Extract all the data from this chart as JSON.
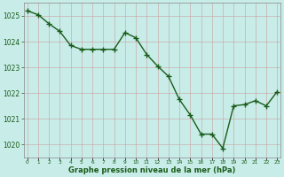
{
  "x": [
    0,
    1,
    2,
    3,
    4,
    5,
    6,
    7,
    8,
    9,
    10,
    11,
    12,
    13,
    14,
    15,
    16,
    17,
    18,
    19,
    20,
    21,
    22,
    23
  ],
  "y": [
    1025.2,
    1025.05,
    1024.7,
    1024.4,
    1023.85,
    1023.7,
    1023.7,
    1023.7,
    1023.7,
    1024.35,
    1024.15,
    1023.5,
    1023.05,
    1022.65,
    1021.75,
    1021.15,
    1020.4,
    1020.4,
    1019.85,
    1021.5,
    1021.55,
    1021.7,
    1021.5,
    1022.05
  ],
  "line_color": "#1a5c1a",
  "marker_color": "#1a5c1a",
  "bg_color": "#c8ece8",
  "grid_color_major": "#c8a0a0",
  "grid_color_minor": "#d8c0c0",
  "xlabel": "Graphe pression niveau de la mer (hPa)",
  "xlabel_color": "#1a5c1a",
  "tick_color": "#1a5c1a",
  "spine_color": "#888888",
  "ylim": [
    1019.5,
    1025.5
  ],
  "xlim": [
    -0.3,
    23.3
  ],
  "yticks": [
    1020,
    1021,
    1022,
    1023,
    1024,
    1025
  ],
  "xtick_labels": [
    "0",
    "1",
    "2",
    "3",
    "4",
    "5",
    "6",
    "7",
    "8",
    "9",
    "10",
    "11",
    "12",
    "13",
    "14",
    "15",
    "16",
    "17",
    "18",
    "19",
    "20",
    "21",
    "22",
    "23"
  ],
  "marker_size": 4.5,
  "line_width": 1.0
}
